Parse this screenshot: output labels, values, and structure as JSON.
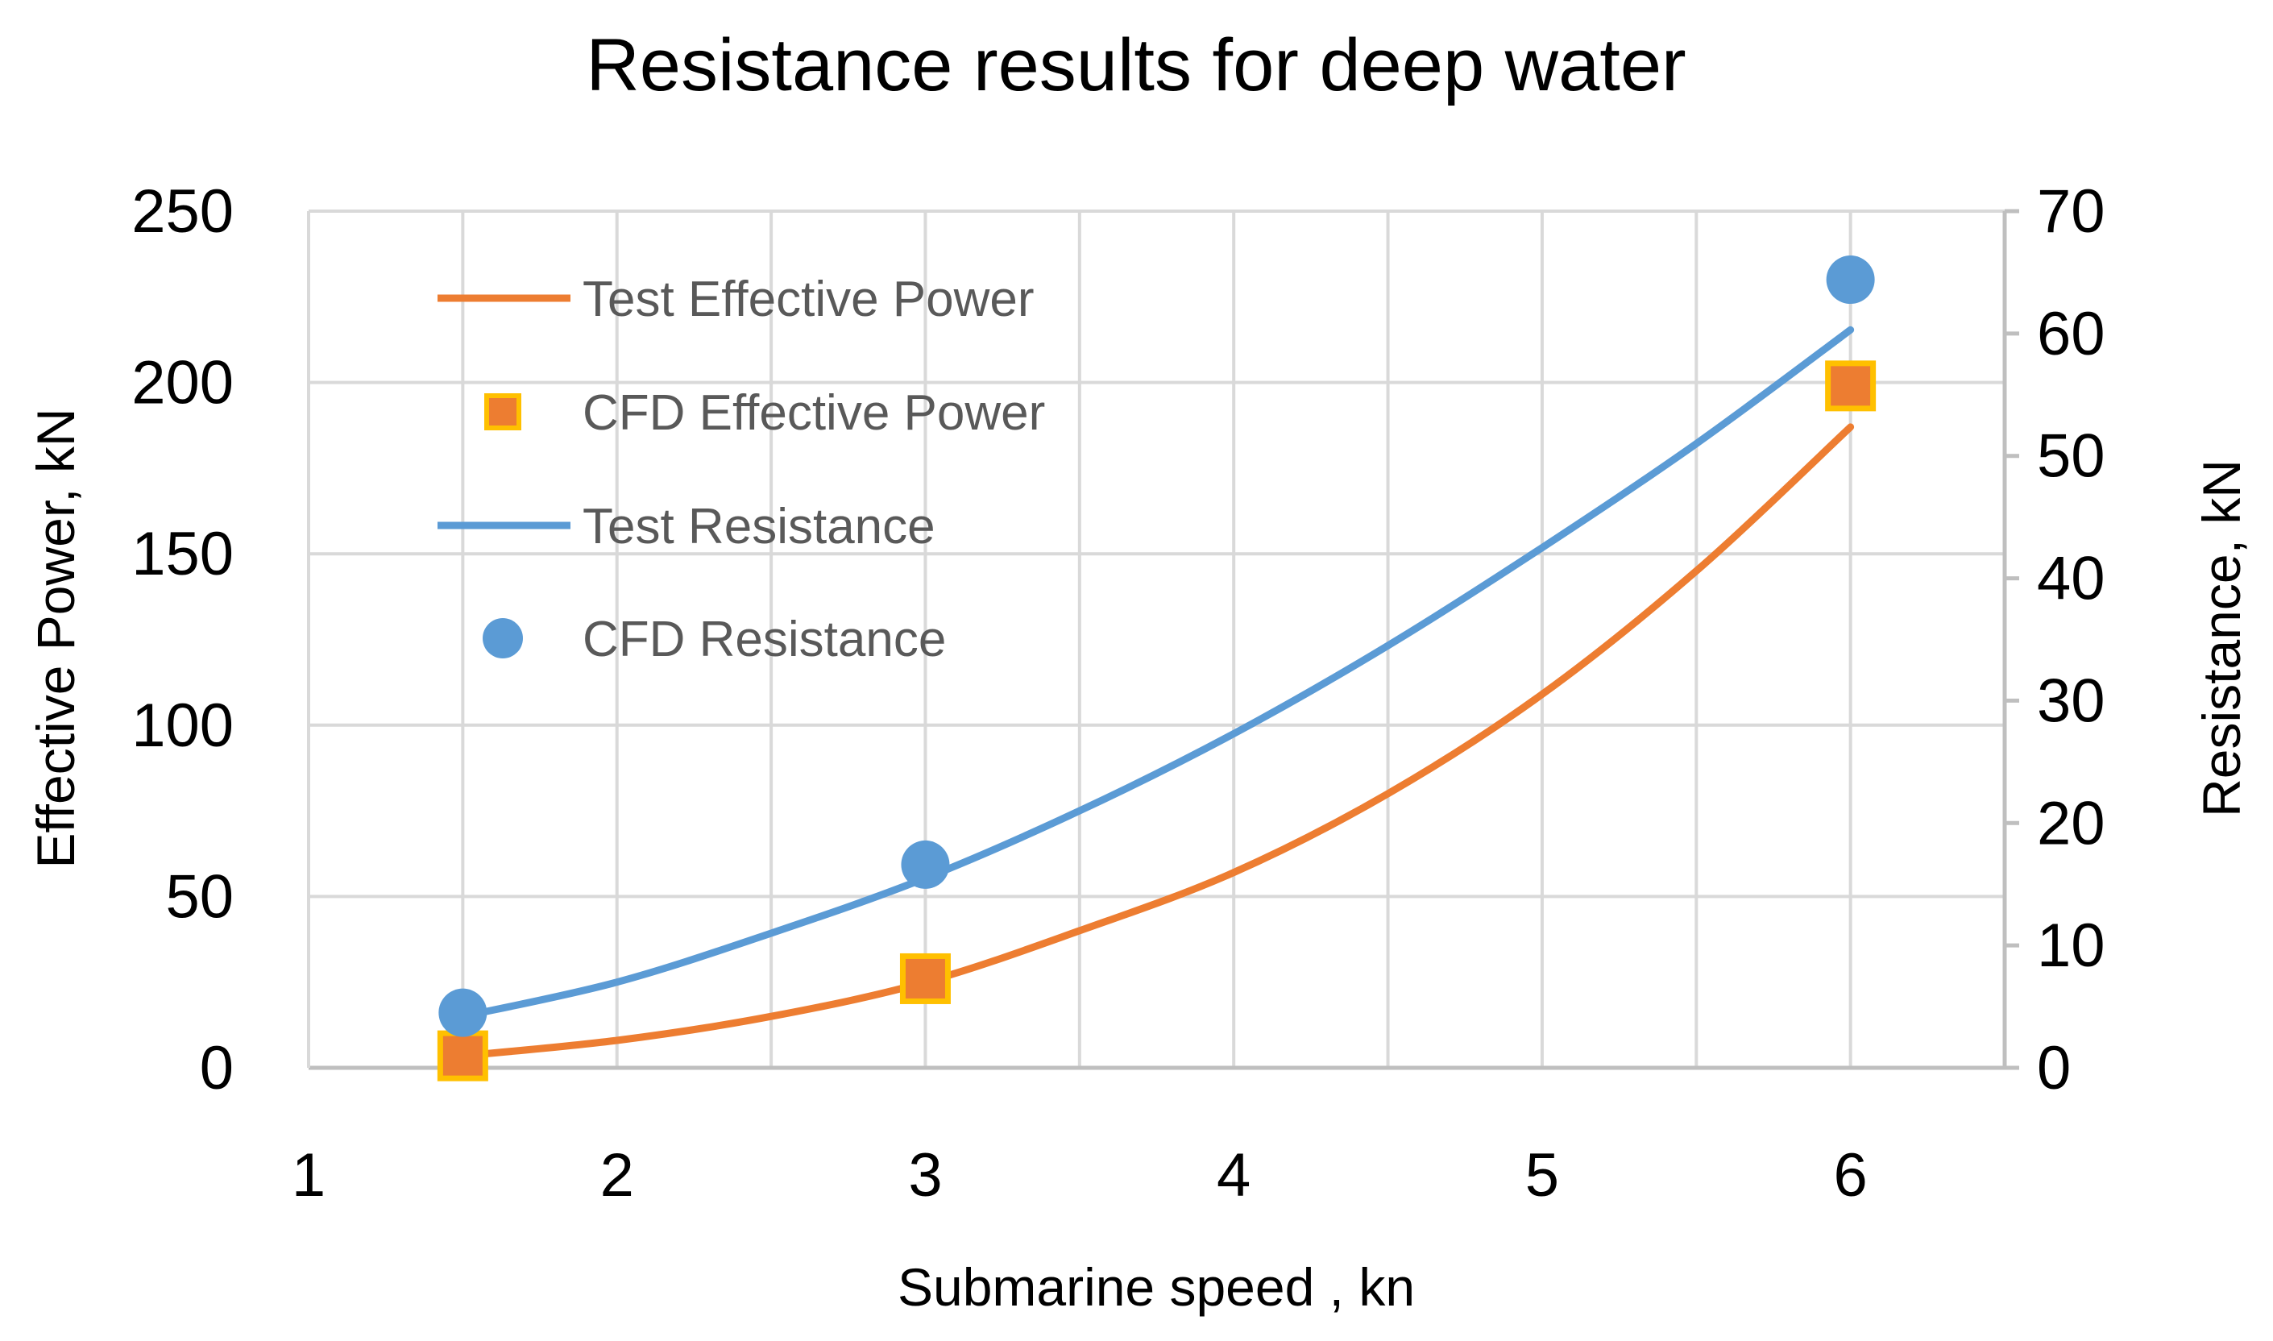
{
  "chart_data": {
    "type": "line",
    "title": "Resistance results for deep water",
    "xlabel": "Submarine speed , kn",
    "ylabel_left": "Effective Power, kN",
    "ylabel_right": "Resistance, kN",
    "xlim": [
      1,
      6.5
    ],
    "ylim_left": [
      0,
      250
    ],
    "ylim_right": [
      0,
      70
    ],
    "x_ticks": [
      1,
      2,
      3,
      4,
      5,
      6
    ],
    "y_left_ticks": [
      0,
      50,
      100,
      150,
      200,
      250
    ],
    "y_right_ticks": [
      0,
      10,
      20,
      30,
      40,
      50,
      60,
      70
    ],
    "grid": true,
    "legend_position": "top-left",
    "series": [
      {
        "name": "Test Effective Power",
        "kind": "line",
        "axis": "left",
        "color": "#ED7D31",
        "x": [
          1.5,
          2.0,
          2.5,
          3.0,
          3.5,
          4.0,
          4.5,
          5.0,
          5.5,
          6.0
        ],
        "y": [
          3.5,
          8,
          15,
          25,
          40,
          57,
          80,
          109,
          145,
          187
        ]
      },
      {
        "name": "CFD Effective Power",
        "kind": "marker",
        "axis": "left",
        "color": "#ED7D31",
        "edge_color": "#FFC000",
        "marker": "square",
        "x": [
          1.5,
          3.0,
          6.0
        ],
        "y": [
          3.5,
          26,
          199
        ]
      },
      {
        "name": "Test Resistance",
        "kind": "line",
        "axis": "right",
        "color": "#5B9BD5",
        "x": [
          1.5,
          2.0,
          2.5,
          3.0,
          3.5,
          4.0,
          4.5,
          5.0,
          5.5,
          6.0
        ],
        "y": [
          4.2,
          7.0,
          11.0,
          15.5,
          21.0,
          27.3,
          34.5,
          42.5,
          51.0,
          60.3
        ]
      },
      {
        "name": "CFD Resistance",
        "kind": "marker",
        "axis": "right",
        "color": "#5B9BD5",
        "marker": "circle",
        "x": [
          1.5,
          3.0,
          6.0
        ],
        "y": [
          4.5,
          16.6,
          64.4
        ]
      }
    ]
  }
}
